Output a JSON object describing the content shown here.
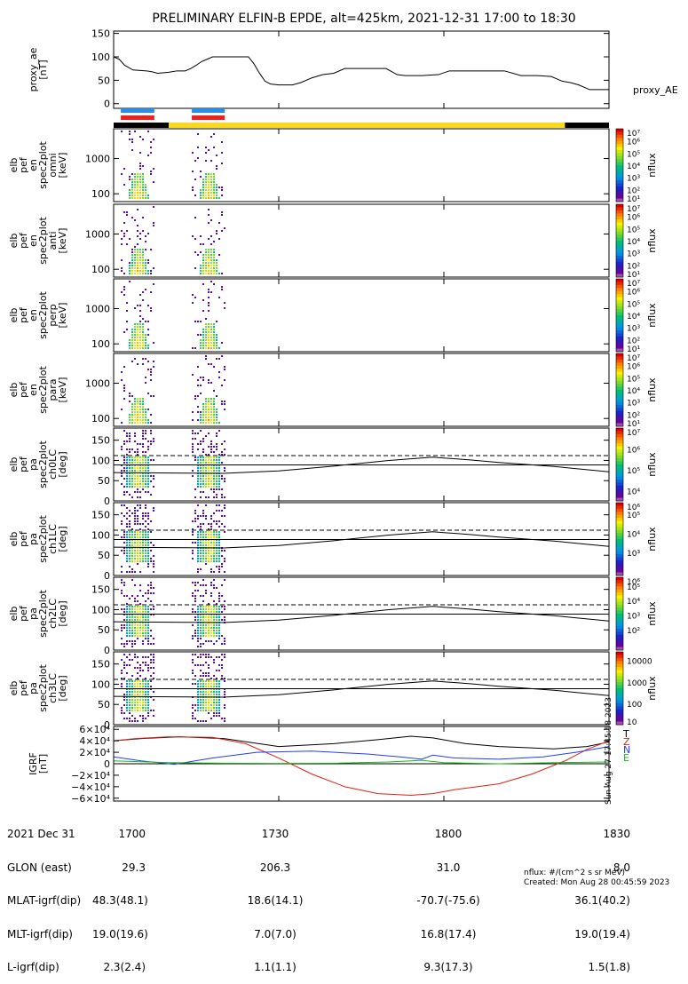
{
  "colors": {
    "ae_line": "#000000",
    "burst_blue": "#2a8ee8",
    "burst_red": "#e8241c",
    "phase_black": "#000000",
    "phase_yellow": "#f8d820",
    "bx": "#1f3cff",
    "by": "#18b818",
    "bz": "#e02010",
    "bt": "#000000"
  },
  "chart_data": {
    "type": "multi-panel time series / spectrogram",
    "title": "PRELIMINARY ELFIN-B EPDE, alt=425km, 2021-12-31 17:00 to 18:30",
    "x_range_min": [
      1020,
      1110
    ],
    "x_tick_labels": [
      "1700",
      "1730",
      "1800",
      "1830"
    ],
    "x_tick_values_min": [
      1020,
      1050,
      1080,
      1110
    ],
    "ae": {
      "ylabel_lines": [
        "proxy_ae",
        "[nT]"
      ],
      "legend": "proxy_AE",
      "ylim": [
        -10,
        155
      ],
      "ytick_labels": [
        "150",
        "100",
        "50",
        "0"
      ],
      "ytick_values": [
        150,
        100,
        50,
        0
      ],
      "t": [
        1020,
        1021,
        1022,
        1023.5,
        1026,
        1027,
        1028,
        1030,
        1031.5,
        1033,
        1034,
        1035,
        1036,
        1037,
        1038,
        1039,
        1040,
        1041,
        1042,
        1043,
        1044.5,
        1045.5,
        1046.5,
        1047.5,
        1048.5,
        1050,
        1051.5,
        1052.5,
        1054,
        1056,
        1058,
        1060,
        1062,
        1065,
        1067,
        1069.5,
        1071.5,
        1073,
        1076,
        1079,
        1081,
        1083.5,
        1086,
        1089,
        1091,
        1094,
        1097,
        1099.5,
        1101.5,
        1103,
        1104.5,
        1106.5,
        1108.5,
        1110
      ],
      "v": [
        100,
        95,
        82,
        72,
        70,
        68,
        65,
        67,
        70,
        70,
        75,
        82,
        90,
        95,
        100,
        100,
        100,
        100,
        100,
        100,
        100,
        85,
        65,
        48,
        42,
        40,
        40,
        40,
        45,
        55,
        62,
        65,
        75,
        75,
        75,
        75,
        62,
        60,
        60,
        62,
        70,
        70,
        70,
        70,
        70,
        60,
        60,
        58,
        48,
        45,
        40,
        30,
        30,
        30
      ]
    },
    "bursts": [
      [
        1021.3,
        1027.4
      ],
      [
        1034.2,
        1040.2
      ]
    ],
    "phase_bar": [
      {
        "from": 1020,
        "to": 1030,
        "state": "black"
      },
      {
        "from": 1030,
        "to": 1102,
        "state": "yellow"
      },
      {
        "from": 1102,
        "to": 1110,
        "state": "black"
      }
    ],
    "spectrograms": [
      {
        "ylabel_lines": [
          "elb",
          "pef",
          "en",
          "spec2plot",
          "omni",
          "[keV]"
        ],
        "ytick_labels": [
          "1000",
          "100"
        ],
        "ytick_values": [
          1000,
          100
        ],
        "ylog": true,
        "ylim": [
          60,
          7000
        ],
        "cbar_title": "nflux",
        "cbar_labels": [
          "10⁷",
          "10⁶",
          "10⁵",
          "10⁴",
          "10³",
          "10²",
          "10¹"
        ],
        "cbar_range": [
          1,
          7
        ]
      },
      {
        "ylabel_lines": [
          "elb",
          "pef",
          "en",
          "spec2plot",
          "anti",
          "[keV]"
        ],
        "ytick_labels": [
          "1000",
          "100"
        ],
        "ytick_values": [
          1000,
          100
        ],
        "ylog": true,
        "ylim": [
          60,
          7000
        ],
        "cbar_title": "nflux",
        "cbar_labels": [
          "10⁷",
          "10⁶",
          "10⁵",
          "10⁴",
          "10³",
          "10²",
          "10¹"
        ],
        "cbar_range": [
          1,
          7
        ]
      },
      {
        "ylabel_lines": [
          "elb",
          "pef",
          "en",
          "spec2plot",
          "perp",
          "[keV]"
        ],
        "ytick_labels": [
          "1000",
          "100"
        ],
        "ytick_values": [
          1000,
          100
        ],
        "ylog": true,
        "ylim": [
          60,
          7000
        ],
        "cbar_title": "nflux",
        "cbar_labels": [
          "10⁷",
          "10⁶",
          "10⁵",
          "10⁴",
          "10³",
          "10²",
          "10¹"
        ],
        "cbar_range": [
          1,
          7
        ]
      },
      {
        "ylabel_lines": [
          "elb",
          "pef",
          "en",
          "spec2plot",
          "para",
          "[keV]"
        ],
        "ytick_labels": [
          "1000",
          "100"
        ],
        "ytick_values": [
          1000,
          100
        ],
        "ylog": true,
        "ylim": [
          60,
          7000
        ],
        "cbar_title": "nflux",
        "cbar_labels": [
          "10⁷",
          "10⁶",
          "10⁵",
          "10⁴",
          "10³",
          "10²",
          "10¹"
        ],
        "cbar_range": [
          1,
          7
        ]
      },
      {
        "ylabel_lines": [
          "elb",
          "pef",
          "pa",
          "spec2plot",
          "ch0LC",
          "[deg]"
        ],
        "ytick_labels": [
          "150",
          "100",
          "50",
          "0"
        ],
        "ytick_values": [
          150,
          100,
          50,
          0
        ],
        "ylog": false,
        "ylim": [
          0,
          180
        ],
        "cbar_title": "nflux",
        "cbar_labels": [
          "10⁷",
          "10⁶",
          "10⁵",
          "10⁴"
        ],
        "cbar_range": [
          3.5,
          7
        ]
      },
      {
        "ylabel_lines": [
          "elb",
          "pef",
          "pa",
          "spec2plot",
          "ch1LC",
          "[deg]"
        ],
        "ytick_labels": [
          "150",
          "100",
          "50",
          "0"
        ],
        "ytick_values": [
          150,
          100,
          50,
          0
        ],
        "ylog": false,
        "ylim": [
          0,
          180
        ],
        "cbar_title": "nflux",
        "cbar_labels": [
          "10⁶",
          "10⁵",
          "10⁴",
          "10³"
        ],
        "cbar_range": [
          2.8,
          6.6
        ]
      },
      {
        "ylabel_lines": [
          "elb",
          "pef",
          "pa",
          "spec2plot",
          "ch2LC",
          "[deg]"
        ],
        "ytick_labels": [
          "150",
          "100",
          "50",
          "0"
        ],
        "ytick_values": [
          150,
          100,
          50,
          0
        ],
        "ylog": false,
        "ylim": [
          0,
          180
        ],
        "cbar_title": "nflux",
        "cbar_labels": [
          "10⁶",
          "10⁵",
          "10⁴",
          "10³",
          "10²"
        ],
        "cbar_range": [
          1.6,
          6.6
        ]
      },
      {
        "ylabel_lines": [
          "elb",
          "pef",
          "pa",
          "spec2plot",
          "ch3LC",
          "[deg]"
        ],
        "ytick_labels": [
          "150",
          "100",
          "50",
          "0"
        ],
        "ytick_values": [
          150,
          100,
          50,
          0
        ],
        "ylog": false,
        "ylim": [
          0,
          180
        ],
        "cbar_title": "nflux",
        "cbar_labels": [
          "10000",
          "1000",
          "100",
          "10"
        ],
        "cbar_range": [
          1,
          4.4
        ]
      }
    ],
    "loss_cone_deg": {
      "t": [
        1020,
        1030,
        1040,
        1050,
        1060,
        1070,
        1078,
        1080,
        1085,
        1090,
        1100,
        1110
      ],
      "dashed_upper": [
        112,
        112,
        112,
        112,
        112,
        112,
        112,
        112,
        112,
        112,
        112,
        112
      ],
      "solid_upper": [
        89,
        89,
        89,
        89,
        89,
        89,
        89,
        89,
        89,
        89,
        89,
        89
      ],
      "solid_lower": [
        70,
        69,
        68,
        74,
        86,
        100,
        108,
        106,
        101,
        95,
        85,
        72
      ]
    },
    "igrf": {
      "ylabel_lines": [
        "IGRF",
        "[nT]"
      ],
      "ytick_labels": [
        "6×10⁴",
        "4×10⁴",
        "2×10⁴",
        "0",
        "−2×10⁴",
        "−4×10⁴",
        "−6×10⁴"
      ],
      "ytick_values": [
        60000,
        40000,
        20000,
        0,
        -20000,
        -40000,
        -60000
      ],
      "ylim": [
        -65000,
        65000
      ],
      "legend": [
        "T",
        "Z",
        "N",
        "E"
      ],
      "series": [
        {
          "name": "T",
          "t": [
            1020,
            1025,
            1032,
            1040,
            1050,
            1060,
            1068,
            1074,
            1078,
            1084,
            1090,
            1095,
            1100,
            1106,
            1110
          ],
          "v": [
            40000,
            44000,
            47000,
            44000,
            30000,
            35000,
            42000,
            48000,
            45000,
            35000,
            30000,
            28000,
            26000,
            30000,
            38000
          ]
        },
        {
          "name": "Z",
          "t": [
            1020,
            1024,
            1030,
            1038,
            1044,
            1050,
            1056,
            1062,
            1068,
            1074,
            1078,
            1082,
            1090,
            1096,
            1102,
            1106,
            1110
          ],
          "v": [
            40000,
            44000,
            47000,
            46000,
            35000,
            10000,
            -18000,
            -40000,
            -52000,
            -55000,
            -52000,
            -45000,
            -35000,
            -18000,
            5000,
            25000,
            40000
          ]
        },
        {
          "name": "N",
          "t": [
            1020,
            1025,
            1031,
            1038,
            1046,
            1056,
            1066,
            1072,
            1076,
            1078,
            1082,
            1090,
            1098,
            1104,
            1110
          ],
          "v": [
            12000,
            5000,
            -1000,
            10000,
            20000,
            22000,
            17000,
            12000,
            8000,
            15000,
            10000,
            8000,
            12000,
            20000,
            30000
          ]
        },
        {
          "name": "E",
          "t": [
            1020,
            1030,
            1040,
            1050,
            1060,
            1070,
            1076,
            1080,
            1090,
            1100,
            1110
          ],
          "v": [
            5000,
            2000,
            1000,
            500,
            1000,
            3000,
            6000,
            2000,
            0,
            2000,
            3000
          ]
        }
      ]
    },
    "side_timestamp": "Sun Aug 27 17:45:58 2023"
  },
  "footer": {
    "rows": [
      [
        "2021 Dec 31",
        "1700",
        "1730",
        "1800",
        "1830"
      ],
      [
        "GLON (east)",
        "29.3",
        "206.3",
        "31.0",
        "8.0"
      ],
      [
        "MLAT-igrf(dip)",
        "48.3(48.1)",
        "18.6(14.1)",
        "-70.7(-75.6)",
        "36.1(40.2)"
      ],
      [
        "MLT-igrf(dip)",
        "19.0(19.6)",
        "7.0(7.0)",
        "16.8(17.4)",
        "19.0(19.4)"
      ],
      [
        "L-igrf(dip)",
        "2.3(2.4)",
        "1.1(1.1)",
        "9.3(17.3)",
        "1.5(1.8)"
      ]
    ],
    "units_note": "nflux: #/(cm^2 s sr MeV)",
    "created": "Created: Mon Aug 28 00:45:59 2023"
  }
}
